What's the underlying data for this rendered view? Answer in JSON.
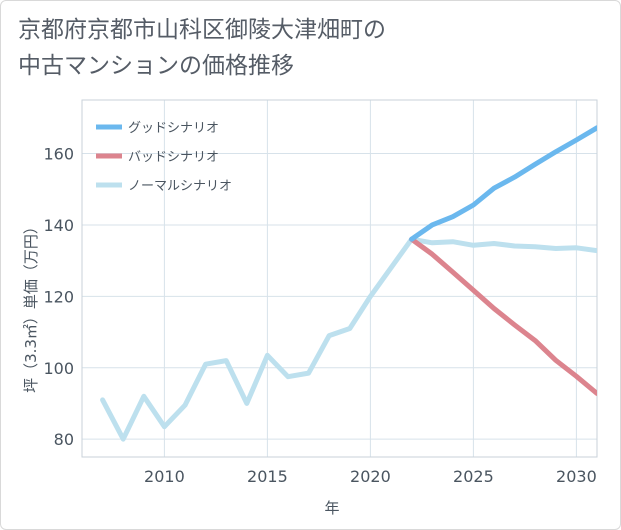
{
  "chart_data": {
    "type": "line",
    "title": [
      "京都府京都市山科区御陵大津畑町の",
      "中古マンションの価格推移"
    ],
    "xlabel": "年",
    "ylabel": "坪（3.3㎡）単価（万円）",
    "xlim": [
      2006,
      2031
    ],
    "ylim": [
      75,
      175
    ],
    "xticks": [
      2010,
      2015,
      2020,
      2025,
      2030
    ],
    "yticks": [
      80,
      100,
      120,
      140,
      160
    ],
    "grid": true,
    "legend_position": "top-left",
    "series": [
      {
        "name": "グッドシナリオ",
        "color": "#6bb8ee",
        "x": [
          2022,
          2023,
          2024,
          2025,
          2026,
          2027,
          2028,
          2029,
          2030,
          2031
        ],
        "values": [
          136,
          140,
          142.3,
          145.6,
          150.3,
          153.4,
          157,
          160.5,
          163.8,
          167.2
        ]
      },
      {
        "name": "バッドシナリオ",
        "color": "#dc848e",
        "x": [
          2022,
          2023,
          2024,
          2025,
          2026,
          2027,
          2028,
          2029,
          2030,
          2031
        ],
        "values": [
          136,
          131.8,
          126.8,
          121.7,
          116.6,
          112,
          107.6,
          102.1,
          97.6,
          92.8
        ]
      },
      {
        "name": "ノーマルシナリオ",
        "color": "#bde0ee",
        "x": [
          2007,
          2008,
          2009,
          2010,
          2011,
          2012,
          2013,
          2014,
          2015,
          2016,
          2017,
          2018,
          2019,
          2020,
          2021,
          2022,
          2023,
          2024,
          2025,
          2026,
          2027,
          2028,
          2029,
          2030,
          2031
        ],
        "values": [
          91,
          80,
          92,
          83.5,
          89.5,
          101,
          102,
          90,
          103.5,
          97.5,
          98.5,
          109,
          111,
          120,
          128,
          136,
          135,
          135.3,
          134.3,
          134.8,
          134.1,
          133.9,
          133.4,
          133.6,
          132.8
        ]
      }
    ]
  }
}
